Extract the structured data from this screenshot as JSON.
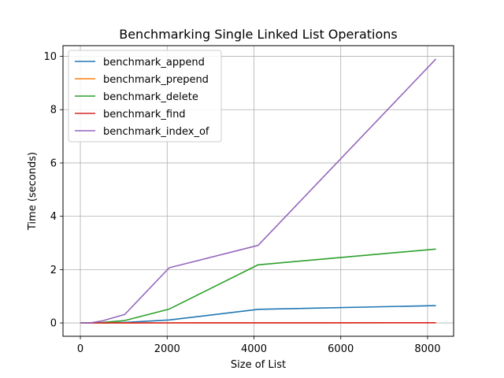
{
  "chart_data": {
    "type": "line",
    "title": "Benchmarking Single Linked List Operations",
    "xlabel": "Size of List",
    "ylabel": "Time (seconds)",
    "xlim": [
      -400,
      8600
    ],
    "ylim": [
      -0.5,
      10.4
    ],
    "xticks": [
      0,
      2000,
      4000,
      6000,
      8000
    ],
    "yticks": [
      0,
      2,
      4,
      6,
      8,
      10
    ],
    "grid": true,
    "legend_position": "top-left",
    "x": [
      1,
      2,
      4,
      8,
      16,
      32,
      64,
      128,
      256,
      512,
      1024,
      2048,
      4096,
      8192
    ],
    "series": [
      {
        "name": "benchmark_append",
        "color": "#1f77b4",
        "values": [
          0,
          0,
          0,
          0,
          0,
          0,
          0,
          0,
          0,
          0.005,
          0.02,
          0.11,
          0.51,
          0.65
        ]
      },
      {
        "name": "benchmark_prepend",
        "color": "#ff7f0e",
        "values": [
          0,
          0,
          0,
          0,
          0,
          0,
          0,
          0,
          0,
          0,
          0.001,
          0.002,
          0.004,
          0.008
        ]
      },
      {
        "name": "benchmark_delete",
        "color": "#2ca02c",
        "values": [
          0,
          0,
          0,
          0,
          0,
          0,
          0,
          0,
          0.002,
          0.02,
          0.09,
          0.52,
          2.18,
          2.77
        ]
      },
      {
        "name": "benchmark_find",
        "color": "#d62728",
        "values": [
          0,
          0,
          0,
          0,
          0,
          0,
          0,
          0,
          0,
          0,
          0.001,
          0.002,
          0.004,
          0.008
        ]
      },
      {
        "name": "benchmark_index_of",
        "color": "#9467bd",
        "values": [
          0,
          0,
          0,
          0,
          0,
          0,
          0,
          0,
          0.01,
          0.08,
          0.32,
          2.07,
          2.91,
          9.9
        ]
      }
    ]
  }
}
